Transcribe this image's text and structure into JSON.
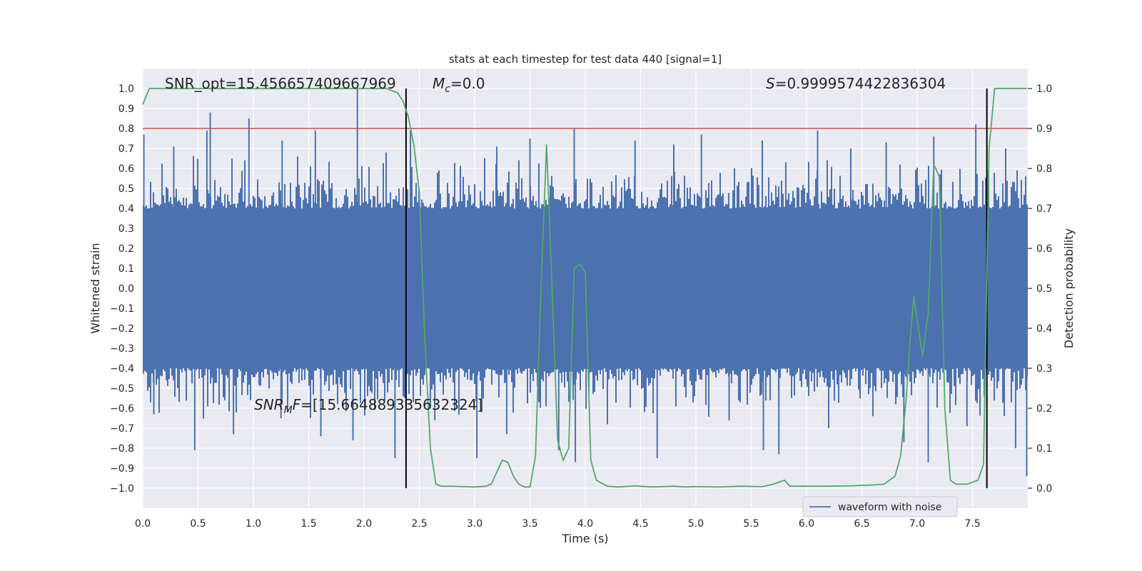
{
  "chart_data": {
    "type": "line",
    "title": "stats at each timestep for test data 440 [signal=1]",
    "xlabel": "Time (s)",
    "ylabel": "Whitened strain",
    "y2label": "Detection probability",
    "xlim": [
      0.0,
      8.0
    ],
    "ylim": [
      -1.1,
      1.1
    ],
    "y2lim": [
      -0.05,
      1.05
    ],
    "x_ticks": [
      0.0,
      0.5,
      1.0,
      1.5,
      2.0,
      2.5,
      3.0,
      3.5,
      4.0,
      4.5,
      5.0,
      5.5,
      6.0,
      6.5,
      7.0,
      7.5
    ],
    "x_tick_labels": [
      "0.0",
      "0.5",
      "1.0",
      "1.5",
      "2.0",
      "2.5",
      "3.0",
      "3.5",
      "4.0",
      "4.5",
      "5.0",
      "5.5",
      "6.0",
      "6.5",
      "7.0",
      "7.5"
    ],
    "y_ticks": [
      -1.0,
      -0.9,
      -0.8,
      -0.7,
      -0.6,
      -0.5,
      -0.4,
      -0.3,
      -0.2,
      -0.1,
      0.0,
      0.1,
      0.2,
      0.3,
      0.4,
      0.5,
      0.6,
      0.7,
      0.8,
      0.9,
      1.0
    ],
    "y_tick_labels": [
      "−1.0",
      "−0.9",
      "−0.8",
      "−0.7",
      "−0.6",
      "−0.5",
      "−0.4",
      "−0.3",
      "−0.2",
      "−0.1",
      "0.0",
      "0.1",
      "0.2",
      "0.3",
      "0.4",
      "0.5",
      "0.6",
      "0.7",
      "0.8",
      "0.9",
      "1.0"
    ],
    "y2_ticks": [
      0.0,
      0.1,
      0.2,
      0.3,
      0.4,
      0.5,
      0.6,
      0.7,
      0.8,
      0.9,
      1.0
    ],
    "y2_tick_labels": [
      "0.0",
      "0.1",
      "0.2",
      "0.3",
      "0.4",
      "0.5",
      "0.6",
      "0.7",
      "0.8",
      "0.9",
      "1.0"
    ],
    "grid": true,
    "legend": {
      "entries": [
        "waveform with noise"
      ],
      "placement": "lower-center-right"
    },
    "annotations": {
      "snr_opt": "SNR_opt=15.456657409667969",
      "mc_symbol": "M",
      "mc_sub": "c",
      "mc_value": "=0.0",
      "s_symbol": "S",
      "s_value": "=0.9999574422836304",
      "snrmf_symbol": "SNR",
      "snrmf_sub": "M",
      "snrmf_tail": "F",
      "snrmf_value": "=[15.664889335632324]"
    },
    "threshold": {
      "y": 0.8,
      "color": "#c44e52"
    },
    "vertical_lines": [
      2.38,
      7.63
    ],
    "series": [
      {
        "name": "waveform with noise",
        "axis": "left",
        "color": "#4c72b0",
        "style": "noise-band",
        "core_abs": 0.4,
        "spikes": [
          [
            0.01,
            0.77
          ],
          [
            0.61,
            0.88
          ],
          [
            0.96,
            0.85
          ],
          [
            1.94,
            1.0
          ],
          [
            2.42,
            0.79
          ],
          [
            3.9,
            0.8
          ],
          [
            5.05,
            0.77
          ],
          [
            7.53,
            0.82
          ],
          [
            0.28,
            0.71
          ],
          [
            0.58,
            0.79
          ],
          [
            1.26,
            0.74
          ],
          [
            1.56,
            0.79
          ],
          [
            3.5,
            0.75
          ],
          [
            4.45,
            0.74
          ],
          [
            6.1,
            0.79
          ],
          [
            6.72,
            0.73
          ],
          [
            7.15,
            0.76
          ],
          [
            1.4,
            0.66
          ],
          [
            2.2,
            0.68
          ],
          [
            3.2,
            0.71
          ],
          [
            4.8,
            0.72
          ],
          [
            5.6,
            0.74
          ],
          [
            6.4,
            0.7
          ],
          [
            7.8,
            0.7
          ],
          [
            0.47,
            -0.81
          ],
          [
            0.82,
            -0.73
          ],
          [
            1.61,
            -0.74
          ],
          [
            1.9,
            -0.76
          ],
          [
            2.28,
            -0.85
          ],
          [
            3.02,
            -0.85
          ],
          [
            3.29,
            -0.73
          ],
          [
            3.76,
            -0.81
          ],
          [
            3.91,
            -0.87
          ],
          [
            4.65,
            -0.85
          ],
          [
            5.61,
            -0.81
          ],
          [
            5.75,
            -0.83
          ],
          [
            6.88,
            -0.77
          ],
          [
            7.1,
            -0.87
          ],
          [
            7.89,
            -0.8
          ],
          [
            0.1,
            -0.63
          ],
          [
            1.25,
            -0.65
          ],
          [
            2.64,
            -0.66
          ],
          [
            4.2,
            -0.68
          ],
          [
            5.3,
            -0.66
          ],
          [
            6.2,
            -0.7
          ],
          [
            6.6,
            -0.64
          ],
          [
            7.45,
            -0.69
          ],
          [
            7.99,
            -0.94
          ]
        ]
      },
      {
        "name": "detection probability",
        "axis": "right",
        "color": "#55a868",
        "style": "line",
        "x": [
          0.0,
          0.06,
          0.2,
          0.5,
          1.0,
          1.5,
          2.0,
          2.2,
          2.3,
          2.35,
          2.4,
          2.45,
          2.5,
          2.55,
          2.6,
          2.65,
          2.7,
          2.8,
          3.0,
          3.1,
          3.15,
          3.2,
          3.25,
          3.3,
          3.35,
          3.4,
          3.45,
          3.5,
          3.55,
          3.6,
          3.65,
          3.7,
          3.75,
          3.8,
          3.85,
          3.9,
          3.95,
          4.0,
          4.05,
          4.1,
          4.2,
          4.3,
          4.45,
          4.6,
          4.8,
          4.9,
          5.0,
          5.2,
          5.4,
          5.6,
          5.7,
          5.75,
          5.8,
          5.85,
          6.0,
          6.2,
          6.4,
          6.6,
          6.7,
          6.75,
          6.8,
          6.85,
          6.9,
          6.93,
          6.97,
          7.0,
          7.05,
          7.1,
          7.15,
          7.2,
          7.25,
          7.3,
          7.35,
          7.45,
          7.55,
          7.6,
          7.65,
          7.7,
          7.75,
          7.85,
          7.99
        ],
        "y": [
          0.96,
          1.0,
          1.0,
          1.0,
          1.0,
          1.0,
          1.0,
          1.0,
          0.99,
          0.97,
          0.93,
          0.86,
          0.74,
          0.37,
          0.1,
          0.01,
          0.005,
          0.005,
          0.003,
          0.005,
          0.01,
          0.04,
          0.07,
          0.065,
          0.03,
          0.01,
          0.003,
          0.003,
          0.08,
          0.5,
          0.86,
          0.5,
          0.12,
          0.07,
          0.1,
          0.55,
          0.56,
          0.54,
          0.07,
          0.02,
          0.005,
          0.003,
          0.006,
          0.003,
          0.005,
          0.003,
          0.004,
          0.003,
          0.005,
          0.004,
          0.01,
          0.015,
          0.02,
          0.005,
          0.005,
          0.005,
          0.006,
          0.008,
          0.01,
          0.02,
          0.03,
          0.08,
          0.22,
          0.35,
          0.48,
          0.42,
          0.33,
          0.44,
          0.81,
          0.78,
          0.2,
          0.02,
          0.01,
          0.01,
          0.02,
          0.06,
          0.85,
          1.0,
          1.0,
          1.0,
          1.0
        ]
      }
    ]
  }
}
